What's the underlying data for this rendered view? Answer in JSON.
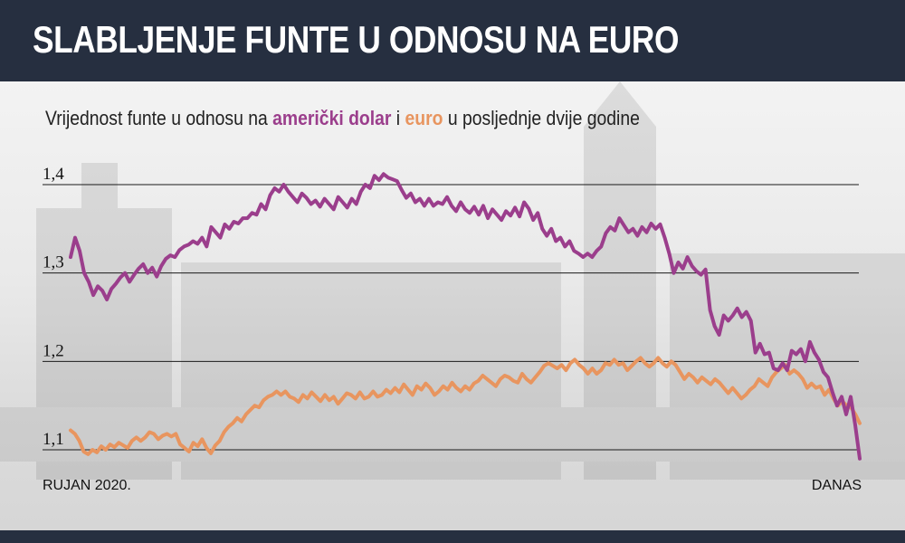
{
  "header": {
    "title": "SLABLJENJE FUNTE U ODNOSU NA EURO"
  },
  "subtitle": {
    "prefix": "Vrijednost funte u odnosu na ",
    "usd_label": "američki dolar",
    "middle": " i ",
    "eur_label": "euro",
    "suffix": " u posljednje dvije godine"
  },
  "colors": {
    "usd": "#9b3e8c",
    "eur": "#e8955f",
    "header_bg": "#262f40"
  },
  "chart_data": {
    "type": "line",
    "title": "Vrijednost funte u odnosu na američki dolar i euro u posljednje dvije godine",
    "x_start_label": "RUJAN 2020.",
    "x_end_label": "DANAS",
    "ylim": [
      1.09,
      1.42
    ],
    "yticks": [
      "1,4",
      "1,3",
      "1,2",
      "1,1"
    ],
    "ytick_values": [
      1.4,
      1.3,
      1.2,
      1.1
    ],
    "grid": true,
    "series": [
      {
        "name": "američki dolar",
        "color": "#9b3e8c",
        "values": [
          1.318,
          1.34,
          1.325,
          1.3,
          1.29,
          1.275,
          1.285,
          1.28,
          1.27,
          1.282,
          1.288,
          1.295,
          1.3,
          1.29,
          1.298,
          1.305,
          1.31,
          1.3,
          1.306,
          1.296,
          1.308,
          1.316,
          1.32,
          1.318,
          1.326,
          1.33,
          1.332,
          1.336,
          1.333,
          1.34,
          1.33,
          1.352,
          1.346,
          1.34,
          1.355,
          1.35,
          1.358,
          1.356,
          1.362,
          1.362,
          1.368,
          1.366,
          1.378,
          1.372,
          1.388,
          1.396,
          1.392,
          1.4,
          1.392,
          1.386,
          1.38,
          1.39,
          1.385,
          1.378,
          1.382,
          1.375,
          1.384,
          1.378,
          1.372,
          1.386,
          1.38,
          1.374,
          1.384,
          1.378,
          1.392,
          1.4,
          1.396,
          1.41,
          1.405,
          1.412,
          1.408,
          1.406,
          1.404,
          1.394,
          1.385,
          1.39,
          1.38,
          1.384,
          1.376,
          1.384,
          1.376,
          1.38,
          1.378,
          1.386,
          1.376,
          1.37,
          1.38,
          1.372,
          1.368,
          1.375,
          1.366,
          1.376,
          1.362,
          1.372,
          1.366,
          1.36,
          1.37,
          1.365,
          1.374,
          1.364,
          1.38,
          1.373,
          1.36,
          1.368,
          1.35,
          1.342,
          1.35,
          1.336,
          1.34,
          1.33,
          1.336,
          1.325,
          1.322,
          1.318,
          1.322,
          1.318,
          1.325,
          1.33,
          1.345,
          1.352,
          1.348,
          1.362,
          1.354,
          1.346,
          1.35,
          1.342,
          1.352,
          1.346,
          1.356,
          1.35,
          1.355,
          1.34,
          1.322,
          1.3,
          1.312,
          1.305,
          1.318,
          1.308,
          1.302,
          1.298,
          1.304,
          1.258,
          1.24,
          1.23,
          1.252,
          1.246,
          1.252,
          1.26,
          1.25,
          1.256,
          1.246,
          1.21,
          1.22,
          1.208,
          1.21,
          1.192,
          1.19,
          1.198,
          1.19,
          1.212,
          1.208,
          1.214,
          1.2,
          1.222,
          1.21,
          1.202,
          1.188,
          1.182,
          1.165,
          1.15,
          1.16,
          1.14,
          1.16,
          1.128,
          1.09
        ]
      },
      {
        "name": "euro",
        "color": "#e8955f",
        "values": [
          1.122,
          1.118,
          1.11,
          1.098,
          1.095,
          1.1,
          1.097,
          1.104,
          1.1,
          1.106,
          1.103,
          1.108,
          1.105,
          1.102,
          1.11,
          1.114,
          1.11,
          1.114,
          1.12,
          1.118,
          1.112,
          1.116,
          1.118,
          1.115,
          1.118,
          1.106,
          1.102,
          1.098,
          1.108,
          1.104,
          1.112,
          1.102,
          1.096,
          1.105,
          1.11,
          1.12,
          1.126,
          1.13,
          1.136,
          1.132,
          1.14,
          1.145,
          1.15,
          1.148,
          1.156,
          1.16,
          1.162,
          1.166,
          1.162,
          1.166,
          1.16,
          1.158,
          1.154,
          1.162,
          1.158,
          1.165,
          1.16,
          1.155,
          1.162,
          1.156,
          1.16,
          1.152,
          1.158,
          1.164,
          1.162,
          1.158,
          1.165,
          1.158,
          1.16,
          1.166,
          1.16,
          1.162,
          1.168,
          1.164,
          1.17,
          1.165,
          1.174,
          1.168,
          1.162,
          1.172,
          1.168,
          1.175,
          1.17,
          1.162,
          1.166,
          1.172,
          1.168,
          1.176,
          1.17,
          1.166,
          1.172,
          1.168,
          1.175,
          1.178,
          1.184,
          1.18,
          1.176,
          1.172,
          1.18,
          1.184,
          1.182,
          1.178,
          1.176,
          1.186,
          1.18,
          1.176,
          1.182,
          1.188,
          1.195,
          1.198,
          1.195,
          1.192,
          1.196,
          1.19,
          1.198,
          1.202,
          1.196,
          1.192,
          1.186,
          1.192,
          1.186,
          1.19,
          1.198,
          1.196,
          1.202,
          1.196,
          1.198,
          1.19,
          1.195,
          1.2,
          1.204,
          1.198,
          1.194,
          1.198,
          1.204,
          1.198,
          1.194,
          1.2,
          1.196,
          1.188,
          1.18,
          1.186,
          1.182,
          1.176,
          1.182,
          1.178,
          1.174,
          1.18,
          1.176,
          1.17,
          1.164,
          1.17,
          1.164,
          1.158,
          1.162,
          1.168,
          1.172,
          1.18,
          1.176,
          1.172,
          1.182,
          1.188,
          1.192,
          1.196,
          1.186,
          1.19,
          1.186,
          1.18,
          1.17,
          1.175,
          1.17,
          1.172,
          1.162,
          1.168,
          1.158,
          1.15,
          1.155,
          1.15,
          1.148,
          1.14,
          1.13
        ]
      }
    ]
  }
}
